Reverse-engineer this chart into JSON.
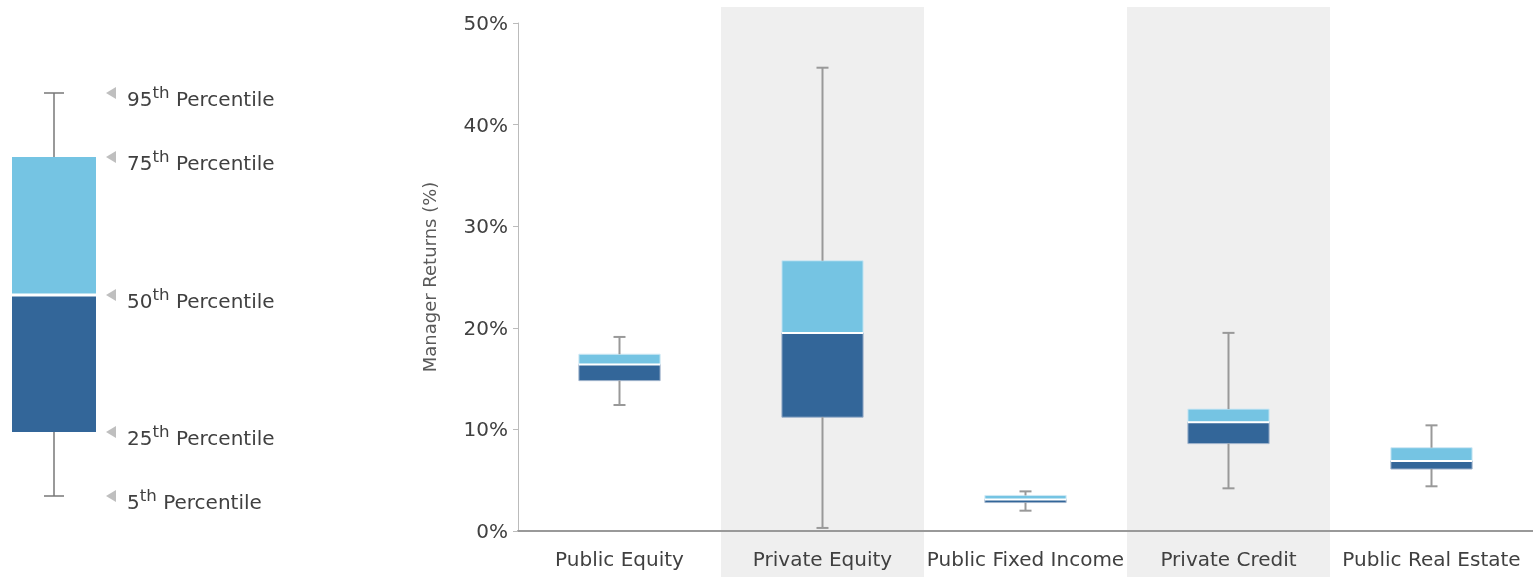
{
  "chart_data": {
    "type": "box",
    "ylabel": "Manager Returns (%)",
    "categories": [
      "Public Equity",
      "Private Equity",
      "Public Fixed Income",
      "Private Credit",
      "Public Real Estate"
    ],
    "series": [
      {
        "color": "#336699",
        "boxes": [
          {
            "low": 12.4,
            "q1": 14.8,
            "median": 16.4,
            "q3": 17.4,
            "high": 19.1
          },
          {
            "low": 0.3,
            "q1": 11.2,
            "median": 19.5,
            "q3": 26.6,
            "high": 45.6
          },
          {
            "low": 2.0,
            "q1": 2.8,
            "median": 3.1,
            "q3": 3.5,
            "high": 3.9
          },
          {
            "low": 4.2,
            "q1": 8.6,
            "median": 10.7,
            "q3": 12.0,
            "high": 19.5
          },
          {
            "low": 4.4,
            "q1": 6.1,
            "median": 6.9,
            "q3": 8.2,
            "high": 10.4
          }
        ]
      }
    ],
    "ylim": [
      0,
      50
    ],
    "yticks": [
      {
        "value": 0,
        "label": "0%"
      },
      {
        "value": 10,
        "label": "10%"
      },
      {
        "value": 20,
        "label": "20%"
      },
      {
        "value": 30,
        "label": "30%"
      },
      {
        "value": 40,
        "label": "40%"
      },
      {
        "value": 50,
        "label": "50%"
      }
    ],
    "bands": [
      {
        "axis": "x",
        "from": "Private Equity",
        "to": "Private Equity",
        "color": "#efefef"
      },
      {
        "axis": "x",
        "from": "Private Credit",
        "to": "Private Credit",
        "color": "#efefef"
      }
    ],
    "annotations": [
      "95$^{th}$ Percentile",
      "75$^{th}$ Percentile",
      "50$^{th}$ Percentile",
      "25$^{th}$ Percentile",
      "5$^{th}$ Percentile"
    ],
    "grid": false
  }
}
